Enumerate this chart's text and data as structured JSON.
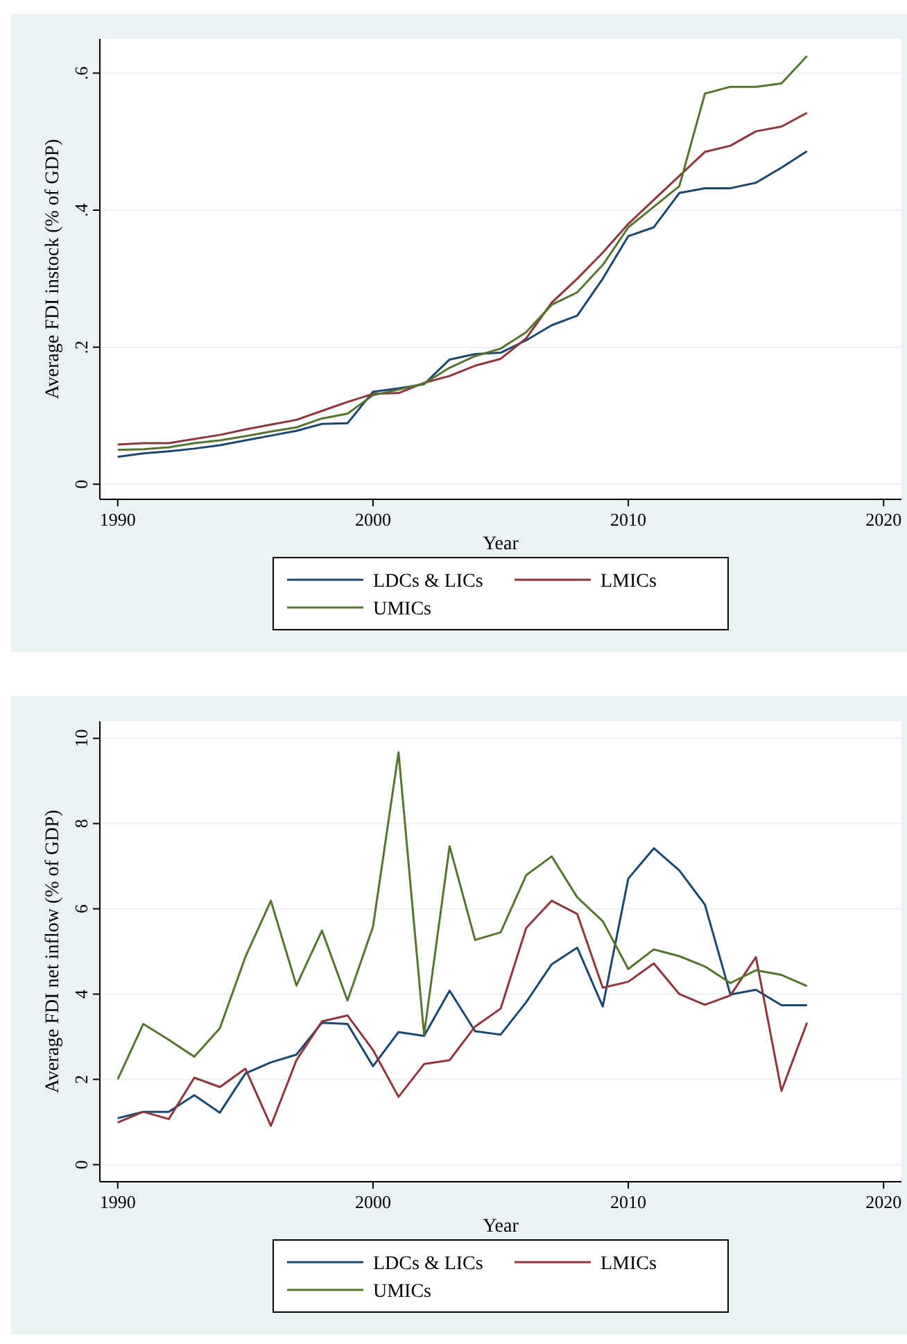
{
  "chart_data": [
    {
      "type": "line",
      "xlabel": "Year",
      "ylabel": "Average FDI instock (% of GDP)",
      "x": [
        1990,
        1991,
        1992,
        1993,
        1994,
        1995,
        1996,
        1997,
        1998,
        1999,
        2000,
        2001,
        2002,
        2003,
        2004,
        2005,
        2006,
        2007,
        2008,
        2009,
        2010,
        2011,
        2012,
        2013,
        2014,
        2015,
        2016,
        2017
      ],
      "series": [
        {
          "name": "LDCs & LICs",
          "color": "#1a476f",
          "values": [
            0.04,
            0.045,
            0.048,
            0.052,
            0.057,
            0.064,
            0.071,
            0.078,
            0.088,
            0.089,
            0.135,
            0.14,
            0.146,
            0.182,
            0.19,
            0.192,
            0.21,
            0.232,
            0.246,
            0.3,
            0.362,
            0.375,
            0.425,
            0.432,
            0.432,
            0.44,
            0.462,
            0.486
          ]
        },
        {
          "name": "LMICs",
          "color": "#90353b",
          "values": [
            0.058,
            0.06,
            0.06,
            0.066,
            0.072,
            0.08,
            0.087,
            0.094,
            0.107,
            0.12,
            0.132,
            0.133,
            0.148,
            0.158,
            0.173,
            0.183,
            0.213,
            0.265,
            0.3,
            0.338,
            0.38,
            0.415,
            0.45,
            0.485,
            0.494,
            0.515,
            0.522,
            0.542
          ]
        },
        {
          "name": "UMICs",
          "color": "#55752f",
          "values": [
            0.05,
            0.051,
            0.054,
            0.06,
            0.064,
            0.07,
            0.077,
            0.083,
            0.096,
            0.103,
            0.13,
            0.138,
            0.147,
            0.17,
            0.187,
            0.198,
            0.222,
            0.262,
            0.28,
            0.32,
            0.375,
            0.405,
            0.435,
            0.57,
            0.58,
            0.58,
            0.585,
            0.625
          ]
        }
      ],
      "xlim": [
        1989.3,
        2020.7
      ],
      "xticks": [
        1990,
        2000,
        2010,
        2020
      ],
      "ylim": [
        -0.022,
        0.65
      ],
      "yticks": [
        {
          "value": 0,
          "label": "0"
        },
        {
          "value": 0.2,
          "label": ".2"
        },
        {
          "value": 0.4,
          "label": ".4"
        },
        {
          "value": 0.6,
          "label": ".6"
        }
      ],
      "grid": "y",
      "legend": "bottom",
      "line_style": "solid",
      "marker": "none"
    },
    {
      "type": "line",
      "xlabel": "Year",
      "ylabel": "Average FDI net inflow (% of GDP)",
      "x": [
        1990,
        1991,
        1992,
        1993,
        1994,
        1995,
        1996,
        1997,
        1998,
        1999,
        2000,
        2001,
        2002,
        2003,
        2004,
        2005,
        2006,
        2007,
        2008,
        2009,
        2010,
        2011,
        2012,
        2013,
        2014,
        2015,
        2016,
        2017
      ],
      "series": [
        {
          "name": "LDCs & LICs",
          "color": "#1a476f",
          "values": [
            1.09,
            1.24,
            1.24,
            1.63,
            1.22,
            2.14,
            2.4,
            2.58,
            3.33,
            3.3,
            2.31,
            3.11,
            3.02,
            4.08,
            3.13,
            3.05,
            3.81,
            4.7,
            5.09,
            3.71,
            6.71,
            7.42,
            6.9,
            6.1,
            3.99,
            4.1,
            3.74,
            3.74
          ]
        },
        {
          "name": "LMICs",
          "color": "#90353b",
          "values": [
            0.99,
            1.24,
            1.07,
            2.04,
            1.82,
            2.25,
            0.91,
            2.45,
            3.36,
            3.5,
            2.69,
            1.59,
            2.36,
            2.45,
            3.24,
            3.66,
            5.55,
            6.19,
            5.88,
            4.15,
            4.29,
            4.72,
            4.0,
            3.75,
            3.97,
            4.87,
            1.73,
            3.33
          ]
        },
        {
          "name": "UMICs",
          "color": "#55752f",
          "values": [
            2.0,
            3.3,
            2.93,
            2.53,
            3.2,
            4.87,
            6.19,
            4.2,
            5.49,
            3.85,
            5.58,
            9.67,
            3.05,
            7.47,
            5.27,
            5.45,
            6.79,
            7.23,
            6.27,
            5.71,
            4.59,
            5.05,
            4.89,
            4.65,
            4.26,
            4.56,
            4.45,
            4.19
          ]
        }
      ],
      "xlim": [
        1989.3,
        2020.7
      ],
      "xticks": [
        1990,
        2000,
        2010,
        2020
      ],
      "ylim": [
        -0.4,
        10.4
      ],
      "yticks": [
        0,
        2,
        4,
        6,
        8,
        10
      ],
      "grid": "y",
      "legend": "bottom",
      "line_style": "solid",
      "marker": "none"
    }
  ]
}
